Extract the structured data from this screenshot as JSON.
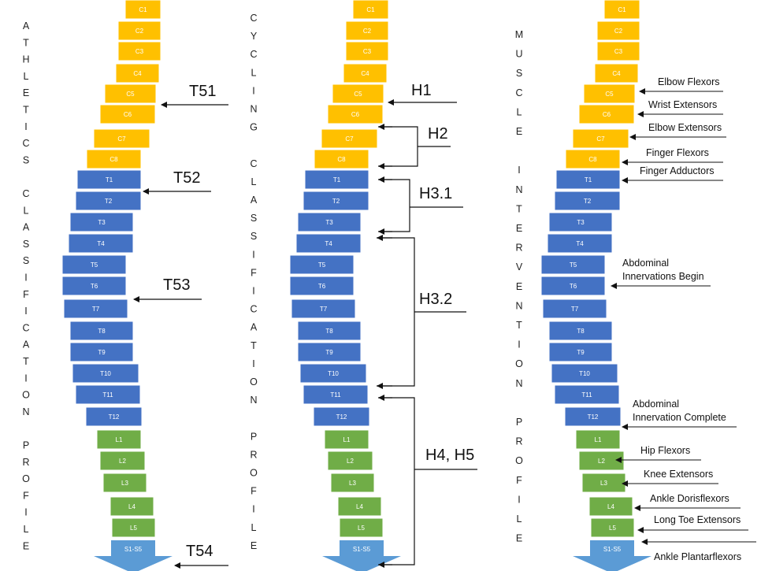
{
  "colors": {
    "cervical": "#FFC000",
    "thoracic": "#4472C4",
    "lumbar": "#70AD47",
    "sacral": "#5B9BD5",
    "ink": "#111111"
  },
  "vertebra_labels": [
    "C1",
    "C2",
    "C3",
    "C4",
    "C5",
    "C6",
    "C7",
    "C8",
    "T1",
    "T2",
    "T3",
    "T4",
    "T5",
    "T6",
    "T7",
    "T8",
    "T9",
    "T10",
    "T11",
    "T12",
    "L1",
    "L2",
    "L3",
    "L4",
    "L5"
  ],
  "sacral_label": "S1-S5",
  "side_titles": {
    "athletics": [
      "A",
      "T",
      "H",
      "L",
      "E",
      "T",
      "I",
      "C",
      "S",
      "",
      "C",
      "L",
      "A",
      "S",
      "S",
      "I",
      "F",
      "I",
      "C",
      "A",
      "T",
      "I",
      "O",
      "N",
      "",
      "P",
      "R",
      "O",
      "F",
      "I",
      "L",
      "E"
    ],
    "cycling": [
      "C",
      "Y",
      "C",
      "L",
      "I",
      "N",
      "G",
      "",
      "C",
      "L",
      "A",
      "S",
      "S",
      "I",
      "F",
      "I",
      "C",
      "A",
      "T",
      "I",
      "O",
      "N",
      "",
      "P",
      "R",
      "O",
      "F",
      "I",
      "L",
      "E"
    ],
    "muscle": [
      "M",
      "U",
      "S",
      "C",
      "L",
      "E",
      "",
      "I",
      "N",
      "T",
      "E",
      "R",
      "V",
      "E",
      "N",
      "T",
      "I",
      "O",
      "N",
      "",
      "P",
      "R",
      "O",
      "F",
      "I",
      "L",
      "E"
    ]
  },
  "athletics_classes": [
    "T51",
    "T52",
    "T53",
    "T54"
  ],
  "cycling_classes": [
    "H1",
    "H2",
    "H3.1",
    "H3.2",
    "H4, H5"
  ],
  "muscle_labels": [
    "Elbow Flexors",
    "Wrist Extensors",
    "Elbow Extensors",
    "Finger Flexors",
    "Finger Adductors",
    "Abdominal",
    "Innervations Begin",
    "Abdominal",
    "Innervation Complete",
    "Hip Flexors",
    "Knee Extensors",
    "Ankle Dorisflexors",
    "Long Toe Extensors",
    "Ankle Plantarflexors"
  ]
}
